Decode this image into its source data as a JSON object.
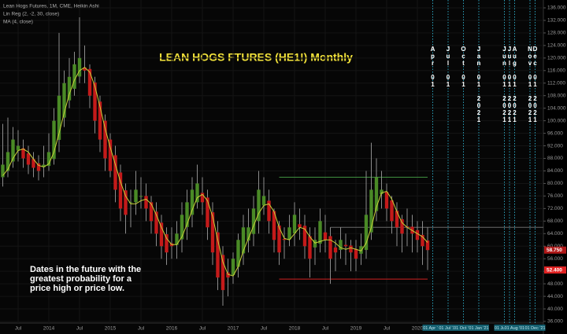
{
  "chart_data": {
    "type": "candlestick",
    "title": "LEAN HOGS FTURES (HE1!) Monthly",
    "header": [
      "Lean Hogs Futures, 1M, CME, Heikin Ashi",
      "Lin Reg (2, -2, 30, close)"
    ],
    "annotation": [
      "Dates in the future with the",
      "greatest probability for a",
      "price high or price low."
    ],
    "x": [
      "2013-04",
      "2013-05",
      "2013-06",
      "2013-07",
      "2013-08",
      "2013-09",
      "2013-10",
      "2013-11",
      "2013-12",
      "2014-01",
      "2014-02",
      "2014-03",
      "2014-04",
      "2014-05",
      "2014-06",
      "2014-07",
      "2014-08",
      "2014-09",
      "2014-10",
      "2014-11",
      "2014-12",
      "2015-01",
      "2015-02",
      "2015-03",
      "2015-04",
      "2015-05",
      "2015-06",
      "2015-07",
      "2015-08",
      "2015-09",
      "2015-10",
      "2015-11",
      "2015-12",
      "2016-01",
      "2016-02",
      "2016-03",
      "2016-04",
      "2016-05",
      "2016-06",
      "2016-07",
      "2016-08",
      "2016-09",
      "2016-10",
      "2016-11",
      "2016-12",
      "2017-01",
      "2017-02",
      "2017-03",
      "2017-04",
      "2017-05",
      "2017-06",
      "2017-07",
      "2017-08",
      "2017-09",
      "2017-10",
      "2017-11",
      "2017-12",
      "2018-01",
      "2018-02",
      "2018-03",
      "2018-04",
      "2018-05",
      "2018-06",
      "2018-07",
      "2018-08",
      "2018-09",
      "2018-10",
      "2018-11",
      "2018-12",
      "2019-01",
      "2019-02",
      "2019-03",
      "2019-04",
      "2019-05",
      "2019-06",
      "2019-07",
      "2019-08",
      "2019-09",
      "2019-10",
      "2019-11",
      "2019-12",
      "2020-01",
      "2020-02",
      "2020-03"
    ],
    "open": [
      82,
      84,
      87,
      90.5,
      91.2,
      89.6,
      87.8,
      86.4,
      85.2,
      85.6,
      87.8,
      93.9,
      101,
      106.5,
      110.2,
      114.1,
      117,
      116.5,
      112.2,
      106.1,
      100,
      94,
      89,
      83.5,
      77.8,
      73.9,
      74,
      76,
      76,
      74,
      71,
      67.5,
      63.8,
      60.9,
      60.4,
      62.2,
      66.1,
      70,
      74,
      77,
      75.5,
      70.8,
      64.4,
      57.2,
      51.6,
      50.8,
      53.4,
      57.7,
      61.8,
      63.9,
      68,
      73,
      74.5,
      71.2,
      66.6,
      62.3,
      62.2,
      64.1,
      67,
      66.5,
      63.2,
      59.6,
      60.8,
      64.4,
      63.2,
      59.6,
      58.8,
      60.4,
      60.2,
      59.1,
      57.6,
      58.8,
      64.4,
      71.2,
      76.6,
      77.3,
      74.6,
      71.3,
      68.6,
      66.3,
      66.2,
      65.1,
      63.6,
      61.8
    ],
    "close": [
      86,
      90,
      94,
      92,
      88,
      86,
      85,
      84,
      86,
      90,
      100,
      108,
      112,
      114,
      118,
      120,
      116,
      108,
      100,
      94,
      88,
      84,
      78,
      72,
      70,
      74,
      78,
      76,
      72,
      68,
      64,
      60,
      58,
      60,
      64,
      70,
      74,
      78,
      80,
      74,
      66,
      58,
      50,
      46,
      50,
      56,
      62,
      66,
      66,
      72,
      78,
      76,
      68,
      62,
      58,
      62,
      66,
      70,
      66,
      60,
      56,
      62,
      68,
      62,
      56,
      58,
      62,
      60,
      58,
      56,
      60,
      70,
      78,
      82,
      78,
      72,
      68,
      66,
      64,
      66,
      64,
      62,
      60,
      58.75
    ],
    "high": [
      99,
      101,
      98,
      97,
      94,
      92,
      90,
      89,
      92,
      96,
      104,
      128,
      116,
      120,
      122,
      133,
      124,
      118,
      114,
      108,
      102,
      96,
      92,
      86,
      80,
      78,
      84,
      82,
      80,
      76,
      74,
      70,
      66,
      66,
      68,
      74,
      78,
      82,
      86,
      82,
      78,
      74,
      68,
      60,
      56,
      58,
      64,
      70,
      72,
      76,
      84,
      82,
      78,
      72,
      68,
      66,
      70,
      74,
      72,
      70,
      66,
      66,
      72,
      70,
      66,
      62,
      66,
      64,
      62,
      62,
      64,
      84,
      93,
      88,
      84,
      80,
      76,
      74,
      70,
      72,
      70,
      68,
      68,
      66
    ],
    "low": [
      79,
      82,
      85,
      87,
      85,
      83,
      82,
      81,
      82,
      84,
      86,
      90,
      98,
      104,
      108,
      112,
      112,
      104,
      96,
      90,
      84,
      82,
      74,
      68,
      64,
      66,
      70,
      72,
      68,
      64,
      60,
      56,
      54,
      56,
      56,
      58,
      62,
      66,
      72,
      70,
      62,
      54,
      46,
      41,
      44,
      48,
      50,
      54,
      58,
      60,
      64,
      70,
      64,
      58,
      54,
      56,
      60,
      60,
      62,
      56,
      50,
      54,
      58,
      58,
      48,
      52,
      56,
      54,
      52,
      52,
      54,
      56,
      62,
      68,
      72,
      68,
      64,
      60,
      58,
      60,
      58,
      58,
      54,
      52.4
    ],
    "up_color": "#4a8a26",
    "down_color": "#c41a1a",
    "wick_color": "#8c8c8c",
    "ma": {
      "name": "MA (4, close)",
      "color": "#c8d23a",
      "values": [
        82.5,
        84.5,
        88,
        90.5,
        91,
        90,
        87.75,
        85.75,
        85.25,
        86.25,
        90,
        96,
        102.5,
        108.5,
        113,
        116,
        117,
        115.5,
        111,
        104.5,
        97.5,
        91.5,
        86,
        80.5,
        76,
        73.5,
        73.5,
        74.5,
        75,
        73.5,
        70,
        66,
        62.5,
        60.5,
        60.5,
        63,
        67,
        71.5,
        75.5,
        76.5,
        74.5,
        69.5,
        62,
        55,
        51,
        50.5,
        53.5,
        58.5,
        62.5,
        66.5,
        70.5,
        73,
        73.5,
        71,
        66,
        62.5,
        62,
        64,
        66,
        65.5,
        63,
        61,
        61.5,
        62,
        62,
        61,
        59.5,
        59,
        59.5,
        59,
        58.5,
        61,
        66,
        72.5,
        77,
        77.5,
        75,
        71,
        67.5,
        66,
        65,
        64,
        63,
        61.19
      ]
    },
    "ylim": [
      36,
      136
    ],
    "yticks": [
      {
        "value": 36,
        "label": "36.000"
      },
      {
        "value": 40,
        "label": "40.000"
      },
      {
        "value": 44,
        "label": "44.000"
      },
      {
        "value": 48,
        "label": "48.000"
      },
      {
        "value": 52,
        "label": "52.000"
      },
      {
        "value": 56,
        "label": "56.000"
      },
      {
        "value": 60,
        "label": "60.000"
      },
      {
        "value": 64,
        "label": "64.000"
      },
      {
        "value": 68,
        "label": "68.000"
      },
      {
        "value": 72,
        "label": "72.000"
      },
      {
        "value": 76,
        "label": "76.000"
      },
      {
        "value": 80,
        "label": "80.000"
      },
      {
        "value": 84,
        "label": "84.000"
      },
      {
        "value": 88,
        "label": "88.000"
      },
      {
        "value": 92,
        "label": "92.000"
      },
      {
        "value": 96,
        "label": "96.000"
      },
      {
        "value": 100,
        "label": "100.000"
      },
      {
        "value": 104,
        "label": "104.000"
      },
      {
        "value": 108,
        "label": "108.000"
      },
      {
        "value": 112,
        "label": "112.000"
      },
      {
        "value": 116,
        "label": "116.000"
      },
      {
        "value": 120,
        "label": "120.000"
      },
      {
        "value": 124,
        "label": "124.000"
      },
      {
        "value": 128,
        "label": "128.000"
      },
      {
        "value": 132,
        "label": "132.000"
      },
      {
        "value": 136,
        "label": "136.000"
      }
    ],
    "xticks": [
      {
        "value": "2013-07",
        "label": "Jul"
      },
      {
        "value": "2014-01",
        "label": "2014"
      },
      {
        "value": "2014-07",
        "label": "Jul"
      },
      {
        "value": "2015-01",
        "label": "2015"
      },
      {
        "value": "2015-07",
        "label": "Jul"
      },
      {
        "value": "2016-01",
        "label": "2016"
      },
      {
        "value": "2016-07",
        "label": "Jul"
      },
      {
        "value": "2017-01",
        "label": "2017"
      },
      {
        "value": "2017-07",
        "label": "Jul"
      },
      {
        "value": "2018-01",
        "label": "2018"
      },
      {
        "value": "2018-07",
        "label": "Jul"
      },
      {
        "value": "2019-01",
        "label": "2019"
      },
      {
        "value": "2019-07",
        "label": "Jul"
      },
      {
        "value": "2020-01",
        "label": "2020"
      }
    ],
    "grid": true,
    "levels": [
      {
        "value": 82,
        "color": "#3f8f3f",
        "from": "2017-10",
        "to": "2020-03"
      },
      {
        "value": 49.5,
        "color": "#d02020",
        "from": "2017-10",
        "to": "2020-03"
      },
      {
        "value": 66,
        "color": "#6a6a6a",
        "from": "2018-08"
      }
    ],
    "price_tags": [
      {
        "value": 58.75,
        "label": "58.750",
        "color": "#b01818"
      },
      {
        "value": 52.4,
        "label": "52.400",
        "color": "#e02222"
      }
    ],
    "future_dates": [
      {
        "x": "2020-04",
        "label": "Apr 01",
        "axis_label": "01 Apr '20"
      },
      {
        "x": "2020-07",
        "label": "Jul 01",
        "axis_label": "01 Jul '20"
      },
      {
        "x": "2020-10",
        "label": "Oct 01",
        "axis_label": "01 Oct '20"
      },
      {
        "x": "2021-01",
        "label": "Jan 01 2021",
        "axis_label": "01 Jan '21"
      },
      {
        "x": "2021-06",
        "label": "Jun 01 2021",
        "axis_label": "01 Jun '21"
      },
      {
        "x": "2021-07",
        "label": "Jul 01 2021"
      },
      {
        "x": "2021-08",
        "label": "Aug 01 2021",
        "axis_label": "01 Aug '21"
      },
      {
        "x": "2021-11",
        "label": "Nov 01 2021",
        "axis_label": "01 Nov '21"
      },
      {
        "x": "2021-12",
        "label": "Dec 01 2021",
        "axis_label": "01 Dec '21"
      }
    ],
    "future_color": "#2a9fb8"
  }
}
